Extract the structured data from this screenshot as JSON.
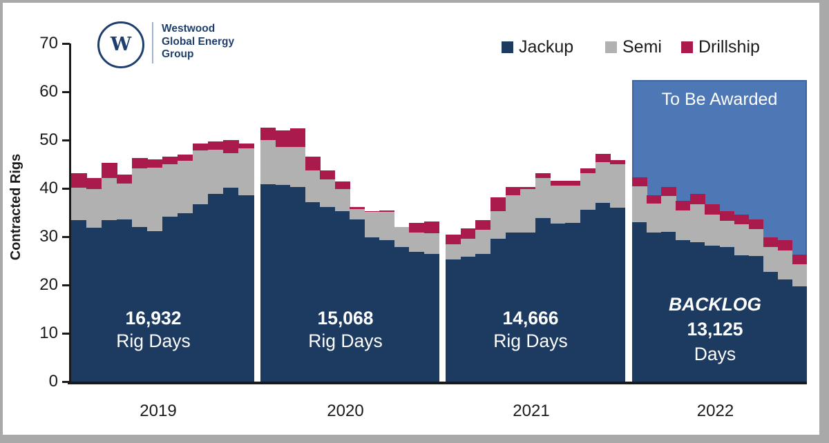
{
  "brand": {
    "logo_letter": "W",
    "name_lines": [
      "Westwood",
      "Global Energy",
      "Group"
    ]
  },
  "legend": [
    {
      "label": "Jackup",
      "color": "#1d3a60"
    },
    {
      "label": "Semi",
      "color": "#b1b1b1"
    },
    {
      "label": "Drillship",
      "color": "#ab1a4d"
    }
  ],
  "axes": {
    "y_label": "Contracted Rigs",
    "y_ticks": [
      0,
      10,
      20,
      30,
      40,
      50,
      60,
      70
    ],
    "x_labels": [
      "2019",
      "2020",
      "2021",
      "2022"
    ]
  },
  "to_be_awarded": {
    "label": "To Be Awarded",
    "fill": "#4e78b5",
    "border": "#3e639f",
    "top_rigs": 62.5
  },
  "annotations": [
    {
      "lines": [
        "16,932",
        "Rig Days"
      ],
      "styles": [
        "b",
        "r"
      ]
    },
    {
      "lines": [
        "15,068",
        "Rig Days"
      ],
      "styles": [
        "b",
        "r"
      ]
    },
    {
      "lines": [
        "14,666",
        "Rig Days"
      ],
      "styles": [
        "b",
        "r"
      ]
    },
    {
      "lines": [
        "BACKLOG",
        "13,125",
        "Days"
      ],
      "styles": [
        "bi",
        "b",
        "r"
      ]
    }
  ],
  "chart_data": {
    "type": "bar",
    "stacked": true,
    "title": "",
    "ylabel": "Contracted Rigs",
    "ylim": [
      0,
      70
    ],
    "grid": false,
    "legend_position": "top-right",
    "x_unit": "month",
    "categories": [
      "2019",
      "2020",
      "2021",
      "2022"
    ],
    "groups": [
      {
        "year": "2019",
        "rig_days": "16,932",
        "series": [
          {
            "name": "Jackup",
            "values": [
              33.4,
              31.9,
              33.4,
              33.6,
              32.0,
              31.2,
              34.1,
              34.8,
              36.7,
              38.9,
              40.1,
              38.6
            ]
          },
          {
            "name": "Semi",
            "values": [
              6.7,
              7.9,
              8.8,
              7.4,
              12.1,
              13.1,
              10.9,
              10.9,
              11.1,
              9.1,
              7.2,
              9.7
            ]
          },
          {
            "name": "Drillship",
            "values": [
              3.0,
              2.4,
              3.1,
              1.9,
              2.2,
              1.7,
              1.6,
              1.3,
              1.5,
              1.7,
              2.7,
              1.0
            ]
          }
        ]
      },
      {
        "year": "2020",
        "rig_days": "15,068",
        "series": [
          {
            "name": "Jackup",
            "values": [
              40.8,
              40.7,
              40.3,
              37.1,
              36.2,
              35.3,
              33.6,
              29.8,
              29.3,
              27.9,
              26.9,
              26.4
            ]
          },
          {
            "name": "Semi",
            "values": [
              9.2,
              7.9,
              8.2,
              6.6,
              5.6,
              4.6,
              2.1,
              5.3,
              5.8,
              4.1,
              4.0,
              4.3
            ]
          },
          {
            "name": "Drillship",
            "values": [
              2.6,
              3.4,
              3.9,
              2.9,
              1.9,
              1.5,
              0.4,
              0.2,
              0.3,
              0.0,
              2.0,
              2.4
            ]
          }
        ]
      },
      {
        "year": "2021",
        "rig_days": "14,666",
        "series": [
          {
            "name": "Jackup",
            "values": [
              25.3,
              25.8,
              26.5,
              29.6,
              30.9,
              30.8,
              33.9,
              32.7,
              32.8,
              35.5,
              37.0,
              36.0
            ]
          },
          {
            "name": "Semi",
            "values": [
              3.1,
              3.7,
              5.0,
              5.7,
              7.7,
              9.0,
              8.3,
              7.9,
              7.8,
              7.6,
              8.4,
              9.0
            ]
          },
          {
            "name": "Drillship",
            "values": [
              2.1,
              2.2,
              2.0,
              2.8,
              1.7,
              0.5,
              0.9,
              1.0,
              1.0,
              1.1,
              1.7,
              0.8
            ]
          }
        ]
      },
      {
        "year": "2022",
        "rig_days_backlog": "13,125",
        "overlay": "To Be Awarded",
        "series": [
          {
            "name": "Jackup",
            "values": [
              33.0,
              30.8,
              31.0,
              29.3,
              28.9,
              28.1,
              27.9,
              26.2,
              26.0,
              22.7,
              21.2,
              19.7
            ]
          },
          {
            "name": "Semi",
            "values": [
              7.4,
              6.0,
              7.4,
              6.1,
              7.8,
              6.5,
              5.4,
              6.4,
              5.6,
              5.1,
              6.0,
              4.6
            ]
          },
          {
            "name": "Drillship",
            "values": [
              1.9,
              1.8,
              1.9,
              2.0,
              2.1,
              2.1,
              2.0,
              2.0,
              2.0,
              2.1,
              2.1,
              2.0
            ]
          }
        ]
      }
    ]
  },
  "colors": {
    "jackup": "#1d3a60",
    "semi": "#b1b1b1",
    "drillship": "#ab1a4d",
    "axis": "#1a1a1a",
    "frame": "#a9a9a9",
    "brand_navy": "#1e3f6e"
  }
}
